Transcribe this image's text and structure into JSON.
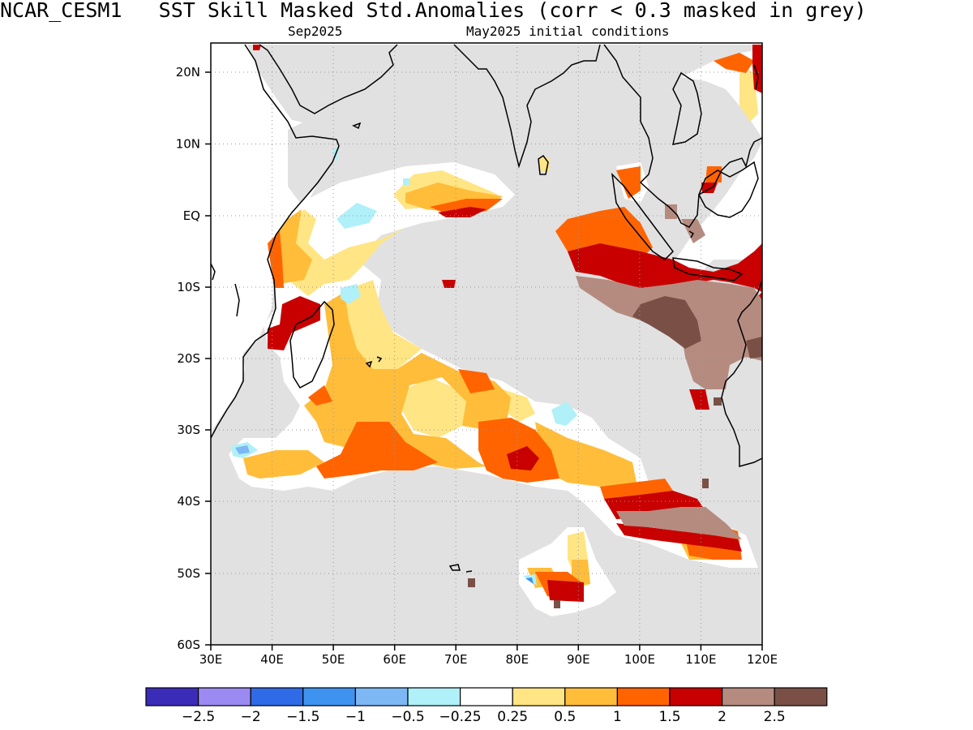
{
  "title": {
    "model": "NCAR_CESM1",
    "text": "SST Skill Masked Std.Anomalies (corr < 0.3 masked in grey)"
  },
  "subtitle": {
    "target_month": "Sep2025",
    "init": "May2025 initial conditions"
  },
  "map": {
    "lon_range": [
      30,
      120
    ],
    "lat_range": [
      -60,
      24
    ],
    "lon_ticks": [
      "30E",
      "40E",
      "50E",
      "60E",
      "70E",
      "80E",
      "90E",
      "100E",
      "110E",
      "120E"
    ],
    "lat_ticks": [
      "20N",
      "10N",
      "EQ",
      "10S",
      "20S",
      "30S",
      "40S",
      "50S",
      "60S"
    ],
    "mask_color": "#e1e1e1",
    "land_color": "#ffffff",
    "coast_color": "#000000"
  },
  "colorbar": {
    "colors": [
      "#3b2cb8",
      "#9a8af2",
      "#2f6be6",
      "#3f93f0",
      "#7db8f5",
      "#b0f0f8",
      "#ffffff",
      "#ffe584",
      "#ffbd3a",
      "#ff6400",
      "#c80000",
      "#b58b80",
      "#7a5046"
    ],
    "labels": [
      "−2.5",
      "−2",
      "−1.5",
      "−1",
      "−0.5",
      "−0.25",
      "0.25",
      "0.5",
      "1",
      "1.5",
      "2",
      "2.5"
    ]
  }
}
